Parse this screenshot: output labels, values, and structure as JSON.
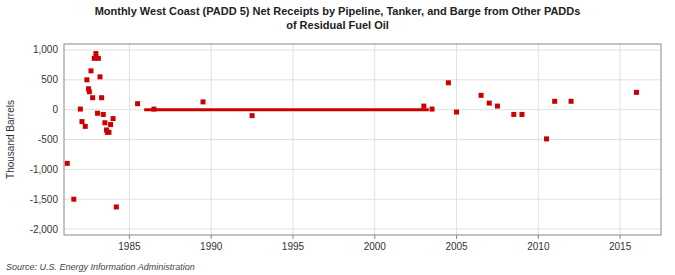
{
  "chart_data": {
    "type": "scatter",
    "title": "Monthly West Coast (PADD 5) Net Receipts by Pipeline, Tanker, and Barge from Other PADDs\nof Residual Fuel Oil",
    "y_label": "Thousand Barrels",
    "source": "Source: U.S. Energy Information Administration",
    "xlim": [
      1981.0,
      2017.5
    ],
    "xticks": [
      1985,
      1990,
      1995,
      2000,
      2005,
      2010,
      2015
    ],
    "ylim": [
      -2100,
      1100
    ],
    "yticks": [
      {
        "value": -2000,
        "label": "-2,000"
      },
      {
        "value": -1500,
        "label": "-1,500"
      },
      {
        "value": -1000,
        "label": "-1,000"
      },
      -500,
      0,
      500,
      {
        "value": 1000,
        "label": "1,000"
      }
    ],
    "grid": true,
    "series": [
      {
        "type": "scatter",
        "color": "#cc0000",
        "marker": "square",
        "x": [
          1981.2,
          1981.6,
          1982.0,
          1982.1,
          1982.3,
          1982.4,
          1982.5,
          1982.55,
          1982.65,
          1982.75,
          1982.85,
          1982.95,
          1983.05,
          1983.1,
          1983.2,
          1983.3,
          1983.4,
          1983.5,
          1983.6,
          1983.65,
          1983.75,
          1983.85,
          1984.0,
          1984.2,
          1985.5,
          1986.5,
          1989.5,
          1992.5,
          2003.0,
          2003.5,
          2004.5,
          2005.0,
          2006.5,
          2007.0,
          2007.5,
          2008.5,
          2009.0,
          2010.5,
          2011.0,
          2012.0,
          2016.0
        ],
        "values": [
          -900,
          -1500,
          10,
          -200,
          -280,
          500,
          350,
          300,
          650,
          200,
          860,
          940,
          -60,
          860,
          550,
          200,
          -80,
          -220,
          -340,
          -380,
          -380,
          -250,
          -150,
          -1630,
          100,
          10,
          130,
          -100,
          60,
          10,
          450,
          -40,
          240,
          110,
          60,
          -80,
          -80,
          -490,
          140,
          140,
          290
        ]
      },
      {
        "type": "line",
        "color": "#cc0000",
        "x": [
          1985.9,
          2003.3
        ],
        "values": [
          0,
          0
        ]
      }
    ]
  }
}
